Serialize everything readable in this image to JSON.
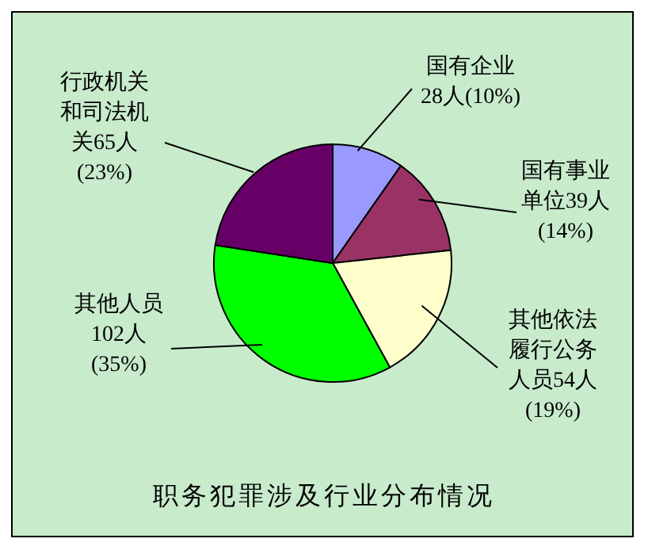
{
  "chart_data": {
    "type": "pie",
    "title": "职务犯罪涉及行业分布情况",
    "categories": [
      "国有企业",
      "国有事业单位",
      "其他依法履行公务人员",
      "其他人员",
      "行政机关和司法机关"
    ],
    "values": [
      28,
      39,
      54,
      102,
      65
    ],
    "value_labels": [
      "28人(10%)",
      "39人(14%)",
      "54人(19%)",
      "102人(35%)",
      "65人(23%)"
    ],
    "colors": [
      "#9999ff",
      "#993366",
      "#ffffcc",
      "#00ff00",
      "#660066"
    ],
    "legend": false
  }
}
